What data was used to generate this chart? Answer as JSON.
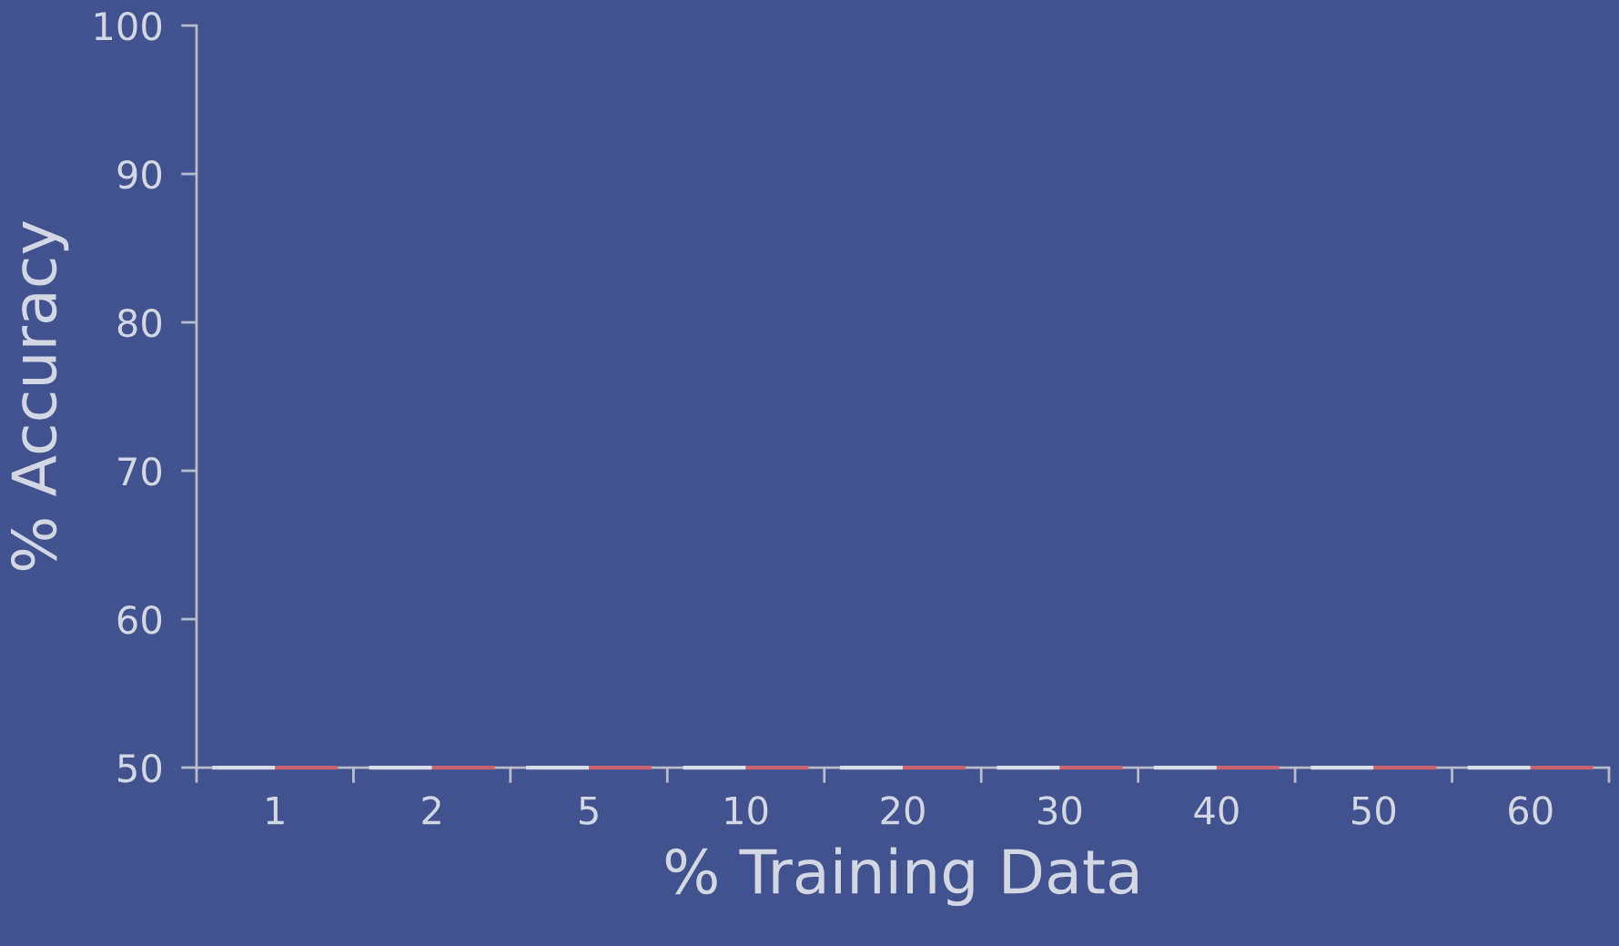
{
  "chart_data": {
    "type": "bar",
    "xlabel": "% Training Data",
    "ylabel": "% Accuracy",
    "categories": [
      "1",
      "2",
      "5",
      "10",
      "20",
      "30",
      "40",
      "50",
      "60"
    ],
    "series": [
      {
        "color": "#d9dde8",
        "values": [
          50,
          50,
          50,
          50,
          50,
          50,
          50,
          50,
          50
        ]
      },
      {
        "color": "#c8646e",
        "values": [
          50,
          50,
          50,
          50,
          50,
          50,
          50,
          50,
          50
        ]
      }
    ],
    "ylim": [
      50,
      100
    ],
    "yticks": [
      50,
      60,
      70,
      80,
      90,
      100
    ],
    "grid": false,
    "legend": false
  }
}
